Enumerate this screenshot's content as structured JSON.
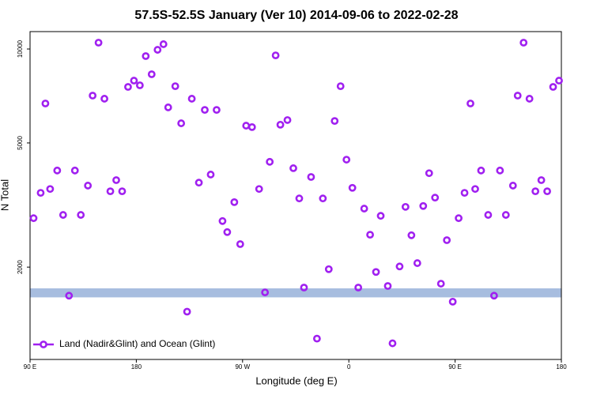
{
  "chart_data": {
    "type": "scatter",
    "title": "57.5S-52.5S January (Ver 10)   2014-09-06 to 2022-02-28",
    "xlabel": "Longitude (deg E)",
    "ylabel": "N Total",
    "x": [
      93,
      99,
      103,
      107,
      113,
      118,
      123,
      128,
      133,
      139,
      143,
      148,
      153,
      158,
      163,
      168,
      173,
      178,
      183,
      188,
      193,
      198,
      203,
      207,
      213,
      218,
      223,
      227,
      233,
      238,
      243,
      248,
      253,
      257,
      263,
      268,
      273,
      278,
      284,
      289,
      293,
      298,
      302,
      308,
      313,
      318,
      322,
      328,
      333,
      338,
      343,
      348,
      353,
      358,
      363,
      368,
      373,
      378,
      383,
      387,
      393,
      397,
      403,
      408,
      413,
      418,
      423,
      428,
      433,
      438,
      443,
      448,
      453,
      458,
      463,
      467,
      472,
      478,
      483,
      488,
      493,
      499,
      503,
      508,
      513,
      518,
      523,
      528,
      533,
      538
    ],
    "series": [
      {
        "name": "Land (Nadir&Glint) and Ocean (Glint)",
        "color": "#a020f0",
        "values": [
          2870,
          3460,
          6690,
          3560,
          4080,
          2940,
          1620,
          4080,
          2940,
          3650,
          7090,
          10480,
          6930,
          3500,
          3800,
          3500,
          7560,
          7920,
          7650,
          9490,
          8300,
          9940,
          10360,
          6500,
          7600,
          5780,
          1440,
          6930,
          3730,
          6380,
          3960,
          6380,
          2810,
          2590,
          3230,
          2370,
          5680,
          5620,
          3560,
          1660,
          4350,
          9540,
          5720,
          5920,
          4150,
          3320,
          1720,
          3890,
          1180,
          3320,
          1970,
          5880,
          7600,
          4420,
          3590,
          1720,
          3080,
          2540,
          1930,
          2920,
          1740,
          1140,
          2010,
          3120,
          2530,
          2060,
          3140,
          4000,
          3340,
          1770,
          2440,
          1550,
          2870,
          3460,
          6690,
          3560,
          4080,
          2940,
          1620,
          4080,
          2940,
          3650,
          7090,
          10480,
          6930,
          3500,
          3800,
          3500,
          7560,
          7920
        ]
      }
    ],
    "xlim": [
      90,
      540
    ],
    "xticks": [
      {
        "value": 90,
        "label": "90 E"
      },
      180,
      {
        "value": 270,
        "label": "90 W"
      },
      {
        "value": 360,
        "label": "0"
      },
      {
        "value": 450,
        "label": "90 E"
      },
      {
        "value": 540,
        "label": "180"
      }
    ],
    "ylim": [
      1012,
      11370
    ],
    "yticks": [
      2000,
      5000,
      10000
    ],
    "ylog": true,
    "band": [
      1600,
      1710
    ],
    "band_color": "#a7bddf",
    "legend": "bottom-left",
    "grid": false
  }
}
